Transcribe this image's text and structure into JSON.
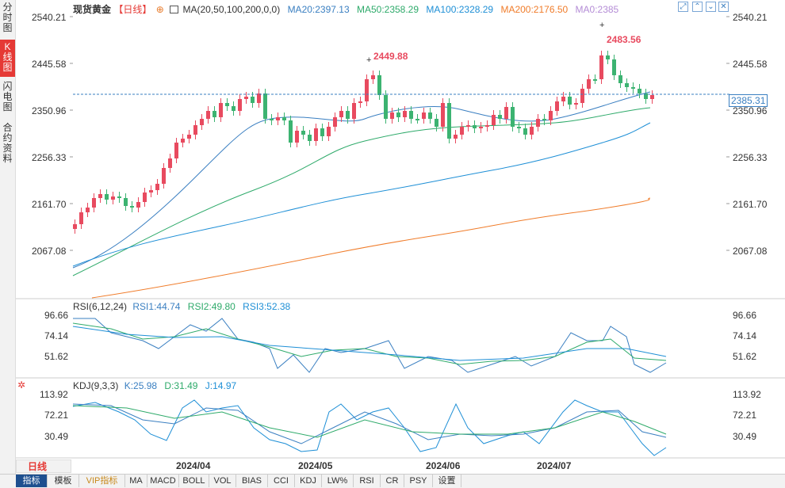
{
  "sidebar": {
    "tabs": [
      {
        "label": "分时图",
        "chars": [
          "分",
          "时",
          "图"
        ],
        "active": false
      },
      {
        "label": "K线图",
        "chars": [
          "K",
          "线",
          "图"
        ],
        "active": true
      },
      {
        "label": "闪电图",
        "chars": [
          "闪",
          "电",
          "图"
        ],
        "active": false
      },
      {
        "label": "合约资料",
        "chars": [
          "合",
          "约",
          "资",
          "料"
        ],
        "active": false
      }
    ]
  },
  "header": {
    "instrument": "现货黄金",
    "period_tag": "【日线】",
    "ma_label": "MA(20,50,100,200,0,0)",
    "ma20": "MA20:2397.13",
    "ma50": "MA50:2358.29",
    "ma100": "MA100:2328.29",
    "ma200": "MA200:2176.50",
    "ma0": "MA0:2385"
  },
  "main_axis": {
    "ticks": [
      "2540.21",
      "2445.58",
      "2350.96",
      "2256.33",
      "2161.70",
      "2067.08"
    ]
  },
  "current_price": "2385.31",
  "high_labels": {
    "peak1": "2449.88",
    "peak2": "2483.56"
  },
  "rsi": {
    "label": "RSI(6,12,24)",
    "rsi1": "RSI1:44.74",
    "rsi2": "RSI2:49.80",
    "rsi3": "RSI3:52.38",
    "ticks": [
      "96.66",
      "74.14",
      "51.62"
    ]
  },
  "kdj": {
    "label": "KDJ(9,3,3)",
    "k": "K:25.98",
    "d": "D:31.49",
    "j": "J:14.97",
    "ticks": [
      "113.92",
      "72.21",
      "30.49"
    ]
  },
  "period_selector": "日线",
  "x_labels": [
    "2024/04",
    "2024/05",
    "2024/06",
    "2024/07"
  ],
  "toolbar": {
    "items": [
      "指标",
      "模板",
      "VIP指标",
      "MA",
      "MACD",
      "BOLL",
      "VOL",
      "BIAS",
      "CCI",
      "KDJ",
      "LW%",
      "RSI",
      "CR",
      "PSY",
      "设置"
    ]
  },
  "colors": {
    "up": "#e84a5f",
    "down": "#3cb371",
    "ma20": "#3a7fc1",
    "ma50": "#2eaa6a",
    "ma100": "#1e8fd6",
    "ma200": "#f07c2a",
    "ma0": "#b48cd6",
    "rsi1": "#3a7fc1",
    "rsi2": "#2eaa6a",
    "rsi3": "#1e8fd6"
  }
}
